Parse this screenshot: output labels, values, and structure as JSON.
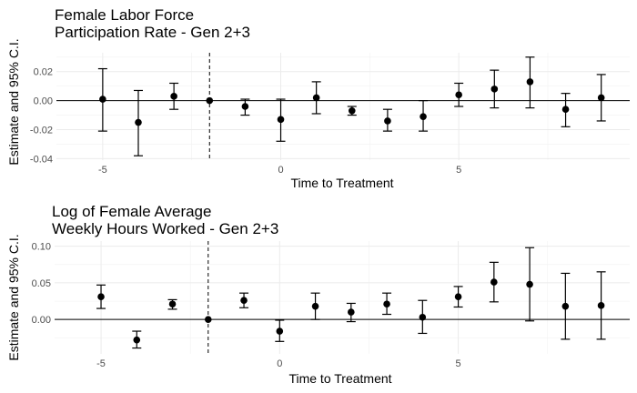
{
  "chart_data": [
    {
      "type": "scatter",
      "title_lines": [
        "Female Labor Force",
        "Participation Rate - Gen 2+3"
      ],
      "xlabel": "Time to Treatment",
      "ylabel": "Estimate and 95% C.I.",
      "xlim": [
        -6.3,
        9.8
      ],
      "ylim": [
        -0.041,
        0.033
      ],
      "x_ticks": [
        -5,
        0,
        5
      ],
      "x_tick_labels": [
        "-5",
        "0",
        "5"
      ],
      "y_ticks": [
        -0.04,
        -0.02,
        0.0,
        0.02
      ],
      "y_tick_labels": [
        "-0.04",
        "-0.02",
        "0.00",
        "0.02"
      ],
      "reference_hline": 0,
      "reference_vline": -2,
      "series": [
        {
          "name": "Estimate",
          "x": [
            -5,
            -4,
            -3,
            -2,
            -1,
            0,
            1,
            2,
            3,
            4,
            5,
            6,
            7,
            8,
            9
          ],
          "estimate": [
            0.001,
            -0.015,
            0.003,
            0.0,
            -0.004,
            -0.013,
            0.002,
            -0.007,
            -0.014,
            -0.011,
            0.004,
            0.008,
            0.013,
            -0.006,
            0.002
          ],
          "ci_low": [
            -0.021,
            -0.038,
            -0.006,
            null,
            -0.01,
            -0.028,
            -0.009,
            -0.01,
            -0.021,
            -0.021,
            -0.004,
            -0.005,
            -0.005,
            -0.018,
            -0.014
          ],
          "ci_high": [
            0.022,
            0.007,
            0.012,
            null,
            0.001,
            0.001,
            0.013,
            -0.004,
            -0.006,
            0.0,
            0.012,
            0.021,
            0.03,
            0.005,
            0.018
          ]
        }
      ]
    },
    {
      "type": "scatter",
      "title_lines": [
        "Log of Female Average",
        "Weekly Hours Worked - Gen 2+3"
      ],
      "xlabel": "Time to Treatment",
      "ylabel": "Estimate and 95% C.I.",
      "xlim": [
        -6.3,
        9.8
      ],
      "ylim": [
        -0.047,
        0.107
      ],
      "x_ticks": [
        -5,
        0,
        5
      ],
      "x_tick_labels": [
        "-5",
        "0",
        "5"
      ],
      "y_ticks": [
        0.0,
        0.05,
        0.1
      ],
      "y_tick_labels": [
        "0.00",
        "0.05",
        "0.10"
      ],
      "reference_hline": 0,
      "reference_vline": -2,
      "series": [
        {
          "name": "Estimate",
          "x": [
            -5,
            -4,
            -3,
            -2,
            -1,
            0,
            1,
            2,
            3,
            4,
            5,
            6,
            7,
            8,
            9
          ],
          "estimate": [
            0.031,
            -0.028,
            0.021,
            0.0,
            0.026,
            -0.016,
            0.018,
            0.01,
            0.021,
            0.003,
            0.031,
            0.051,
            0.048,
            0.018,
            0.019
          ],
          "ci_low": [
            0.015,
            -0.039,
            0.014,
            null,
            0.016,
            -0.03,
            0.0,
            -0.003,
            0.007,
            -0.019,
            0.017,
            0.024,
            -0.002,
            -0.027,
            -0.027
          ],
          "ci_high": [
            0.047,
            -0.016,
            0.027,
            null,
            0.036,
            -0.001,
            0.036,
            0.022,
            0.036,
            0.026,
            0.045,
            0.078,
            0.098,
            0.063,
            0.065
          ]
        }
      ]
    }
  ]
}
